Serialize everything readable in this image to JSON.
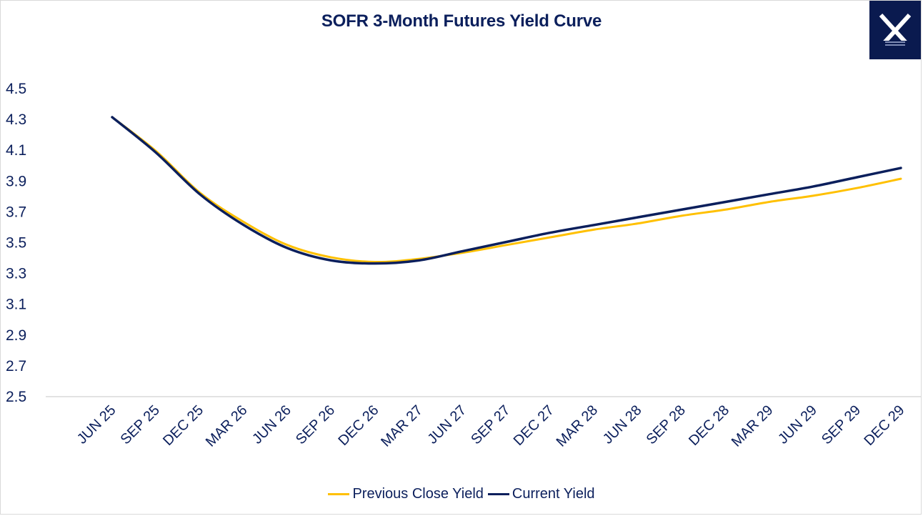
{
  "chart_data": {
    "type": "line",
    "title": "SOFR 3-Month Futures Yield Curve",
    "xlabel": "",
    "ylabel": "",
    "categories": [
      "JUN 25",
      "SEP 25",
      "DEC 25",
      "MAR 26",
      "JUN 26",
      "SEP 26",
      "DEC 26",
      "MAR 27",
      "JUN 27",
      "SEP 27",
      "DEC 27",
      "MAR 28",
      "JUN 28",
      "SEP 28",
      "DEC 28",
      "MAR 29",
      "JUN 29",
      "SEP 29",
      "DEC 29"
    ],
    "y_ticks": [
      "4.5",
      "4.3",
      "4.1",
      "3.9",
      "3.7",
      "3.5",
      "3.3",
      "3.1",
      "2.9",
      "2.7",
      "2.5"
    ],
    "ylim": [
      2.5,
      4.5
    ],
    "grid": false,
    "legend_position": "bottom",
    "series": [
      {
        "name": "Previous Close Yield",
        "color": "#ffc000",
        "values": [
          4.31,
          4.09,
          3.82,
          3.63,
          3.48,
          3.4,
          3.37,
          3.39,
          3.43,
          3.48,
          3.53,
          3.58,
          3.62,
          3.67,
          3.71,
          3.76,
          3.8,
          3.85,
          3.91
        ]
      },
      {
        "name": "Current Yield",
        "color": "#0b1f5c",
        "values": [
          4.31,
          4.08,
          3.81,
          3.61,
          3.46,
          3.38,
          3.36,
          3.38,
          3.44,
          3.5,
          3.56,
          3.61,
          3.66,
          3.71,
          3.76,
          3.81,
          3.86,
          3.92,
          3.98
        ]
      }
    ]
  },
  "logo": {
    "name": "logo-x-icon",
    "bg_color": "#0a1a4f"
  }
}
